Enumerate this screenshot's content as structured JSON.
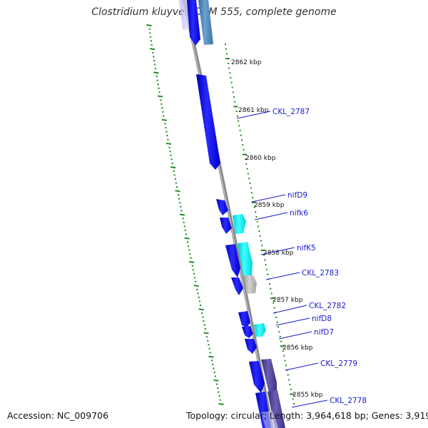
{
  "title": "Clostridium kluyveri DSM 555, complete genome",
  "footer": {
    "accession": "Accession: NC_009706",
    "topology": "Topology: circular; Length: 3,964,618 bp; Genes: 3,919"
  },
  "scale_labels": [
    "2862 kbp",
    "2861 kbp",
    "2860 kbp",
    "2859 kbp",
    "2858 kbp",
    "2857 kbp",
    "2856 kbp",
    "2855 kbp"
  ],
  "gene_labels": [
    "CKL_2787",
    "nifD9",
    "nifk6",
    "nifK5",
    "CKL_2783",
    "CKL_2782",
    "nifD8",
    "nifD7",
    "CKL_2779",
    "CKL_2778"
  ],
  "colors": {
    "backbone": "#8a8a8a",
    "cds_blue": "#1a1ae6",
    "cds_cyan": "#00e5ee",
    "cds_gray": "#b4b4b4",
    "cds_steel": "#4682b4",
    "cds_slate": "#483d8b",
    "label_blue": "#1a1acc",
    "tick_green": "#1e8c1e"
  }
}
